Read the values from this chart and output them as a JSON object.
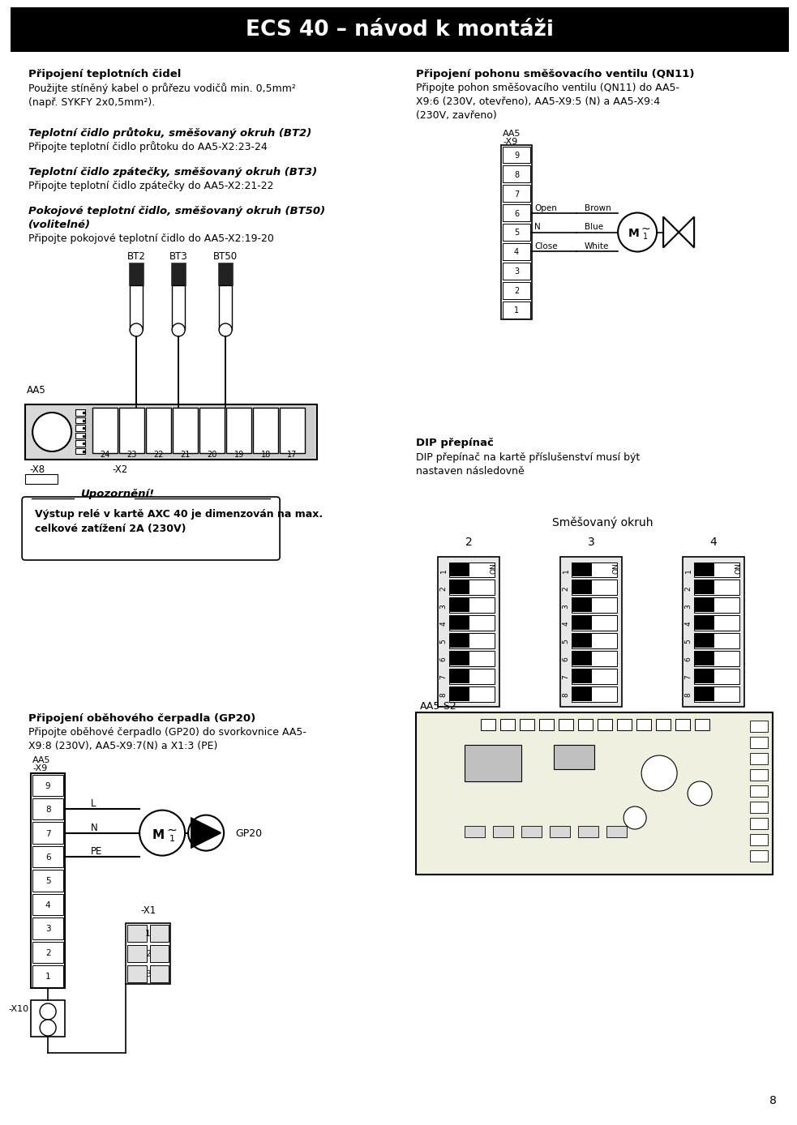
{
  "title": "ECS 40 – návod k montáži",
  "title_bg": "#000000",
  "title_color": "#ffffff",
  "bg_color": "#ffffff",
  "page_number": "8",
  "section1_bold": "Připojení teplotních čidel",
  "section1_text": "Použijte stíněný kabel o průřezu vodičů min. 0,5mm²\n(např. SYKFY 2x0,5mm²).",
  "section2_bold_italic": "Teplotní čidlo průtoku, směšovaný okruh (BT2)",
  "section2_text": "Připojte teplotní čidlo průtoku do AA5-X2:23-24",
  "section3_bold_italic": "Teplotní čidlo zpátečky, směšovaný okruh (BT3)",
  "section3_text": "Připojte teplotní čidlo zpátečky do AA5-X2:21-22",
  "section4_bold_italic1": "Pokojové teplotní čidlo, směšovaný okruh (BT50)",
  "section4_bold_italic2": "(volitelné)",
  "section4_text": "Připojte pokojové teplotní čidlo do AA5-X2:19-20",
  "section5_bold": "Připojení pohonu směšovacího ventilu (QN11)",
  "section5_text": "Připojte pohon směšovacího ventilu (QN11) do AA5-\nX9:6 (230V, otevřeno), AA5-X9:5 (N) a AA5-X9:4\n(230V, zavřeno)",
  "section6_bold": "DIP přepínač",
  "section6_text": "DIP přepínač na kartě příslušenství musí být\nnastaven následovně",
  "section7_bold": "Připojení oběhového čerpadla (GP20)",
  "section7_text": "Připojte oběhové čerpadlo (GP20) do svorkovnice AA5-\nX9:8 (230V), AA5-X9:7(N) a X1:3 (PE)",
  "warning_italic_bold": "Upozornění!",
  "warning_bold_line1": "Výstup relé v kartě AXC 40 je dimenzován na max.",
  "warning_bold_line2": "celkové zatížení 2A (230V)",
  "smes_okruh": "Směšovaný okruh",
  "dip_labels": [
    "2",
    "3",
    "4"
  ],
  "open_label": "Open",
  "n_label": "N",
  "close_label": "Close",
  "brown_label": "Brown",
  "blue_label": "Blue",
  "white_label": "White",
  "aa5_label": "AA5",
  "x9_label": "-X9",
  "x2_label": "-X2",
  "x8_label": "-X8",
  "x10_label": "-X10",
  "x1_label": "-X1",
  "gp20_label": "GP20",
  "aa5s2_label": "AA5-S2",
  "l_label": "L",
  "n2_label": "N",
  "pe_label": "PE",
  "bt_labels": [
    "BT2",
    "BT3",
    "BT50"
  ]
}
